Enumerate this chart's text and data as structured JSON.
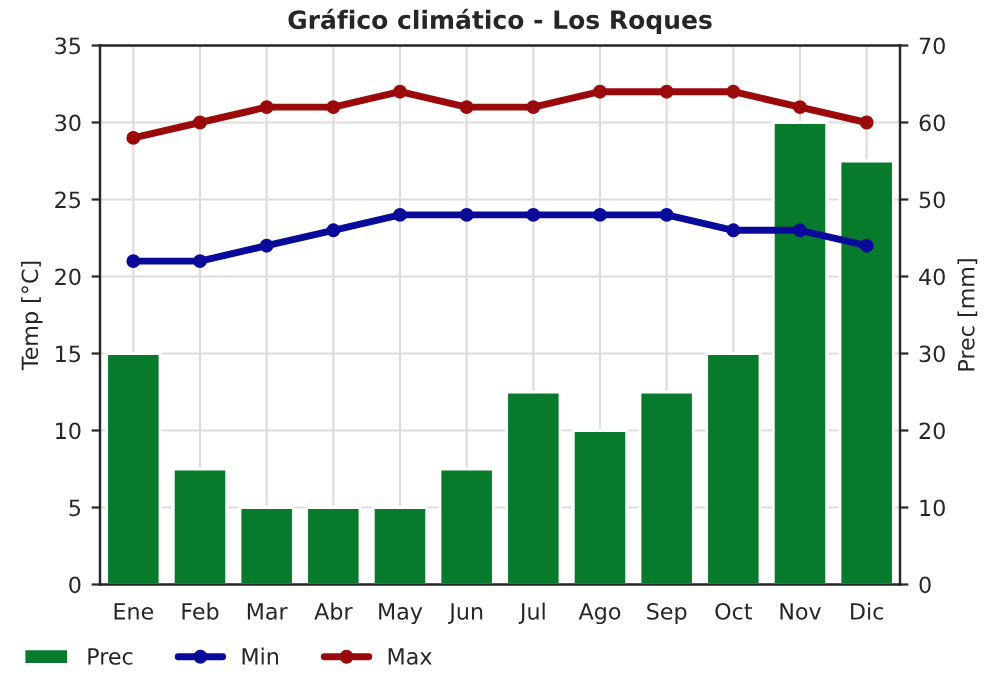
{
  "chart_data": {
    "type": "bar",
    "title": "Gráfico climático - Los Roques",
    "ylabel": "Temp [°C]",
    "y2label": "Prec [mm]",
    "categories": [
      "Ene",
      "Feb",
      "Mar",
      "Abr",
      "May",
      "Jun",
      "Jul",
      "Ago",
      "Sep",
      "Oct",
      "Nov",
      "Dic"
    ],
    "series": [
      {
        "name": "Prec",
        "axis": "y2",
        "color": "#087a2b",
        "values": [
          30,
          15,
          10,
          10,
          10,
          15,
          25,
          20,
          25,
          30,
          60,
          55
        ]
      },
      {
        "name": "Min",
        "type": "line",
        "color": "#0a0a9a",
        "values": [
          21,
          21,
          22,
          23,
          24,
          24,
          24,
          24,
          24,
          23,
          23,
          22
        ]
      },
      {
        "name": "Max",
        "type": "line",
        "color": "#9a0a0a",
        "values": [
          29,
          30,
          31,
          31,
          32,
          31,
          31,
          32,
          32,
          32,
          31,
          30
        ]
      }
    ],
    "ylim": [
      0,
      35
    ],
    "yticks": [
      0,
      5,
      10,
      15,
      20,
      25,
      30,
      35
    ],
    "y2lim": [
      0,
      70
    ],
    "y2ticks": [
      0,
      10,
      20,
      30,
      40,
      50,
      60,
      70
    ],
    "grid": true,
    "legend": "bottom left",
    "marker": "circle",
    "line_style": "solid"
  }
}
